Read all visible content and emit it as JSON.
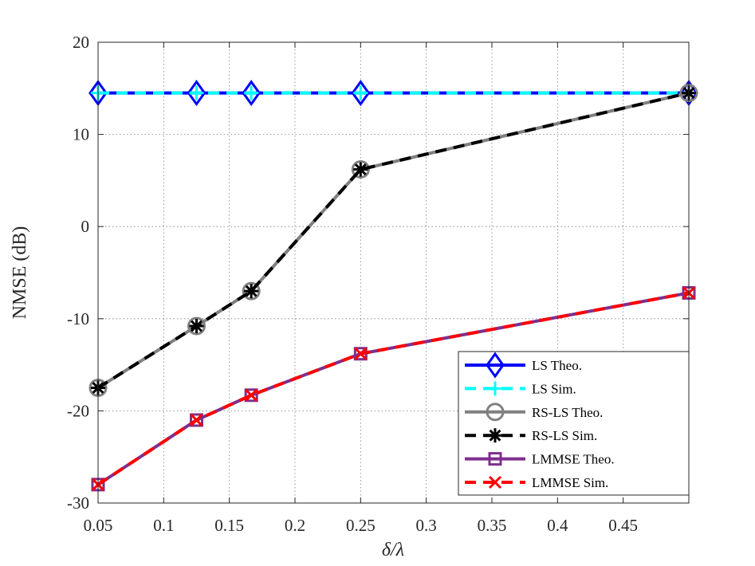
{
  "chart_data": {
    "type": "line",
    "xlabel_text": "δ/λ",
    "ylabel": "NMSE (dB)",
    "xlim": [
      0.05,
      0.5
    ],
    "ylim": [
      -30,
      20
    ],
    "xticks": [
      0.05,
      0.1,
      0.15,
      0.2,
      0.25,
      0.3,
      0.35,
      0.4,
      0.45
    ],
    "xtick_labels": [
      "0.05",
      "0.1",
      "0.15",
      "0.2",
      "0.25",
      "0.3",
      "0.35",
      "0.4",
      "0.45"
    ],
    "yticks": [
      -30,
      -20,
      -10,
      0,
      10,
      20
    ],
    "ytick_labels": [
      "-30",
      "-20",
      "-10",
      "0",
      "10",
      "20"
    ],
    "grid": true,
    "legend_position": "bottom-right",
    "x": [
      0.05,
      0.125,
      0.1667,
      0.25,
      0.5
    ],
    "series": [
      {
        "name": "LS Theo.",
        "values": [
          14.5,
          14.5,
          14.5,
          14.5,
          14.5
        ],
        "color": "#0000ff",
        "dash": "",
        "width": 4,
        "marker": "diamond",
        "marker_color": "#0000ff"
      },
      {
        "name": "LS Sim.",
        "values": [
          14.5,
          14.5,
          14.5,
          14.5,
          14.5
        ],
        "color": "#00ffff",
        "dash": "14,9",
        "width": 4,
        "marker": "plus",
        "marker_color": "#00ffff"
      },
      {
        "name": "RS-LS Theo.",
        "values": [
          -17.5,
          -10.8,
          -7.0,
          6.2,
          14.5
        ],
        "color": "#808080",
        "dash": "",
        "width": 4,
        "marker": "circle",
        "marker_color": "#808080"
      },
      {
        "name": "RS-LS Sim.",
        "values": [
          -17.5,
          -10.8,
          -7.0,
          6.2,
          14.5
        ],
        "color": "#000000",
        "dash": "14,9",
        "width": 4,
        "marker": "asterisk",
        "marker_color": "#000000"
      },
      {
        "name": "LMMSE Theo.",
        "values": [
          -28.0,
          -21.0,
          -18.3,
          -13.8,
          -7.2
        ],
        "color": "#7e2f8e",
        "dash": "",
        "width": 4,
        "marker": "square",
        "marker_color": "#7e2f8e"
      },
      {
        "name": "LMMSE Sim.",
        "values": [
          -28.0,
          -21.0,
          -18.3,
          -13.8,
          -7.2
        ],
        "color": "#ff0000",
        "dash": "14,9",
        "width": 4,
        "marker": "x",
        "marker_color": "#ff0000"
      }
    ]
  }
}
